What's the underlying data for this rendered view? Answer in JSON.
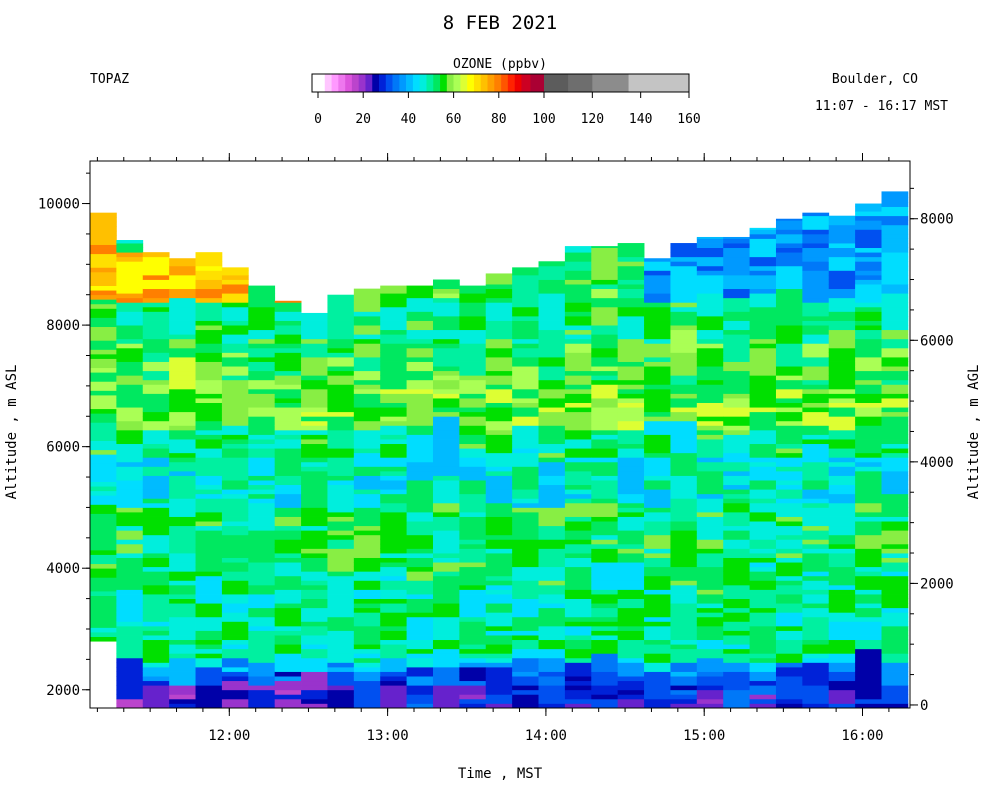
{
  "chart_data": {
    "type": "heatmap",
    "title": "8 FEB 2021",
    "instrument": "TOPAZ",
    "location": "Boulder, CO",
    "time_window": "11:07 - 16:17 MST",
    "colorbar": {
      "title": "OZONE (ppbv)",
      "ticks": [
        "0",
        "20",
        "40",
        "60",
        "80",
        "100",
        "120",
        "140",
        "160"
      ],
      "segments": [
        {
          "from": 0,
          "to": 3,
          "color": "#ffffff"
        },
        {
          "from": 3,
          "to": 6,
          "color": "#ffc6ff"
        },
        {
          "from": 6,
          "to": 9,
          "color": "#ff99ff"
        },
        {
          "from": 9,
          "to": 12,
          "color": "#ee77ee"
        },
        {
          "from": 12,
          "to": 15,
          "color": "#dd55dd"
        },
        {
          "from": 15,
          "to": 18,
          "color": "#bb44cc"
        },
        {
          "from": 18,
          "to": 21,
          "color": "#9933cc"
        },
        {
          "from": 21,
          "to": 24,
          "color": "#6622cc"
        },
        {
          "from": 24,
          "to": 27,
          "color": "#0000a8"
        },
        {
          "from": 27,
          "to": 30,
          "color": "#0022d8"
        },
        {
          "from": 30,
          "to": 33,
          "color": "#0050f0"
        },
        {
          "from": 33,
          "to": 36,
          "color": "#0078f8"
        },
        {
          "from": 36,
          "to": 39,
          "color": "#0099ff"
        },
        {
          "from": 39,
          "to": 42,
          "color": "#00bbff"
        },
        {
          "from": 42,
          "to": 45,
          "color": "#00ddff"
        },
        {
          "from": 45,
          "to": 48,
          "color": "#00eedd"
        },
        {
          "from": 48,
          "to": 51,
          "color": "#00f0a0"
        },
        {
          "from": 51,
          "to": 54,
          "color": "#00e860"
        },
        {
          "from": 54,
          "to": 57,
          "color": "#00e000"
        },
        {
          "from": 57,
          "to": 60,
          "color": "#88ee44"
        },
        {
          "from": 60,
          "to": 63,
          "color": "#aaff55"
        },
        {
          "from": 63,
          "to": 66,
          "color": "#ddff33"
        },
        {
          "from": 66,
          "to": 69,
          "color": "#ffff00"
        },
        {
          "from": 69,
          "to": 72,
          "color": "#ffe000"
        },
        {
          "from": 72,
          "to": 75,
          "color": "#ffc000"
        },
        {
          "from": 75,
          "to": 78,
          "color": "#ff9f00"
        },
        {
          "from": 78,
          "to": 81,
          "color": "#ff7f00"
        },
        {
          "from": 81,
          "to": 84,
          "color": "#ff5500"
        },
        {
          "from": 84,
          "to": 87,
          "color": "#ff2200"
        },
        {
          "from": 87,
          "to": 90,
          "color": "#ee0000"
        },
        {
          "from": 90,
          "to": 94,
          "color": "#cc0022"
        },
        {
          "from": 94,
          "to": 100,
          "color": "#aa0033"
        },
        {
          "from": 100,
          "to": 110,
          "color": "#5c5c5c"
        },
        {
          "from": 110,
          "to": 120,
          "color": "#6e6e6e"
        },
        {
          "from": 120,
          "to": 135,
          "color": "#8c8c8c"
        },
        {
          "from": 135,
          "to": 160,
          "color": "#c4c4c4"
        }
      ]
    },
    "x_axis": {
      "label": "Time , MST",
      "range_hours": [
        11.12,
        16.3
      ],
      "tick_labels": [
        "12:00",
        "13:00",
        "14:00",
        "15:00",
        "16:00"
      ],
      "tick_values_hours": [
        12,
        13,
        14,
        15,
        16
      ],
      "minor_step_hours": 0.166667
    },
    "y_axis_left": {
      "label": "Altitude , m ASL",
      "range": [
        1700,
        10700
      ],
      "tick_values": [
        2000,
        4000,
        6000,
        8000,
        10000
      ],
      "tick_labels": [
        "2000",
        "4000",
        "6000",
        "8000",
        "10000"
      ],
      "minor_step": 500
    },
    "y_axis_right": {
      "label": "Altitude , m AGL",
      "tick_values": [
        0,
        2000,
        4000,
        6000,
        8000
      ],
      "tick_labels": [
        "0",
        "2000",
        "4000",
        "6000",
        "8000"
      ],
      "surface_asl": 1750
    },
    "profiles": {
      "start_hours": 11.12,
      "step_hours": 0.166667,
      "count": 31,
      "bottom_asl": 1700,
      "first_profile_bottom_asl": 2800,
      "top_asl": [
        9850,
        9400,
        9200,
        9100,
        9200,
        8950,
        8650,
        8400,
        8200,
        8500,
        8600,
        8650,
        8650,
        8750,
        8650,
        8850,
        8950,
        9050,
        9300,
        9300,
        9350,
        9100,
        9350,
        9450,
        9450,
        9600,
        9750,
        9850,
        9800,
        10000,
        10200
      ]
    },
    "ozone_layers_ppbv": [
      {
        "bottom": 1700,
        "top": 2100,
        "start_hours": 11.28,
        "end_hours": 12.75,
        "value": 22
      },
      {
        "bottom": 1700,
        "top": 2100,
        "start_hours": 12.75,
        "end_hours": 16.3,
        "value": 27
      },
      {
        "bottom": 2100,
        "top": 2300,
        "value": 33
      },
      {
        "bottom": 2300,
        "top": 2450,
        "value": 41
      },
      {
        "bottom": 2450,
        "top": 3600,
        "value": 50
      },
      {
        "bottom": 3600,
        "top": 4200,
        "value": 51
      },
      {
        "bottom": 4200,
        "top": 5000,
        "value": 52
      },
      {
        "bottom": 5000,
        "top": 5800,
        "value": 47
      },
      {
        "bottom": 5800,
        "top": 6300,
        "value": 51
      },
      {
        "bottom": 6300,
        "top": 7000,
        "value": 58
      },
      {
        "bottom": 7000,
        "top": 7700,
        "value": 55
      },
      {
        "bottom": 7700,
        "top": 8400,
        "value": 52
      },
      {
        "bottom": 8400,
        "top": 9200,
        "start_hours": 11.12,
        "end_hours": 12.5,
        "value": 73
      },
      {
        "bottom": 8400,
        "top": 9200,
        "start_hours": 12.5,
        "end_hours": 14.6,
        "value": 55
      },
      {
        "bottom": 8400,
        "top": 10200,
        "start_hours": 14.6,
        "end_hours": 16.3,
        "value": 37
      },
      {
        "bottom": 9200,
        "top": 9900,
        "start_hours": 11.12,
        "end_hours": 11.3,
        "value": 78
      }
    ],
    "seed": 20210208
  }
}
